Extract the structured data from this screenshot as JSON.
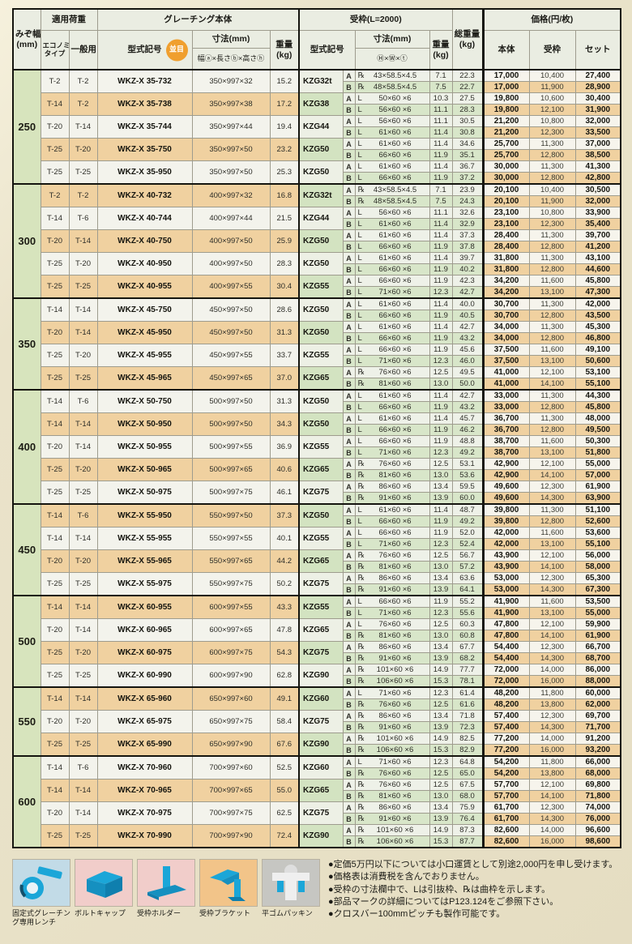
{
  "header": {
    "groove1": "みぞ幅",
    "groove2": "(mm)",
    "load": "適用荷重",
    "eco1": "エコノミー",
    "eco2": "タイプ",
    "general": "一般用",
    "grating": "グレーチング本体",
    "model": "型式記号",
    "pitch_badge": "並目",
    "dims": "寸法(mm)",
    "dims_detail": "幅ⓐ×長さⓑ×高さⓗ",
    "weight1": "重量",
    "weight2": "(kg)",
    "frame": "受枠(L=2000)",
    "frame_model": "型式記号",
    "frame_dims": "寸法(mm)",
    "frame_dims_detail": "Ⓗ×Ⓦ×ⓣ",
    "frame_weight1": "重量",
    "frame_weight2": "(kg)",
    "total1": "総重量",
    "total2": "(kg)",
    "price": "価格(円/枚)",
    "price_body": "本体",
    "price_frame": "受枠",
    "price_set": "セット"
  },
  "groups": [
    {
      "width": "250",
      "rows": [
        {
          "e": "T-2",
          "g": "T-2",
          "m": "WKZ-X 35-732",
          "d": "350×997×32",
          "w": "15.2",
          "f": "KZG32t",
          "a": [
            "℞",
            "43×58.5×4.5",
            "7.1",
            "22.3",
            "17,000",
            "10,400",
            "27,400"
          ],
          "b": [
            "℞",
            "48×58.5×4.5",
            "7.5",
            "22.7",
            "17,000",
            "11,900",
            "28,900"
          ]
        },
        {
          "e": "T-14",
          "g": "T-2",
          "m": "WKZ-X 35-738",
          "d": "350×997×38",
          "w": "17.2",
          "f": "KZG38",
          "a": [
            "L",
            "50×60 ×6",
            "10.3",
            "27.5",
            "19,800",
            "10,600",
            "30,400"
          ],
          "b": [
            "L",
            "56×60 ×6",
            "11.1",
            "28.3",
            "19,800",
            "12,100",
            "31,900"
          ]
        },
        {
          "e": "T-20",
          "g": "T-14",
          "m": "WKZ-X 35-744",
          "d": "350×997×44",
          "w": "19.4",
          "f": "KZG44",
          "a": [
            "L",
            "56×60 ×6",
            "11.1",
            "30.5",
            "21,200",
            "10,800",
            "32,000"
          ],
          "b": [
            "L",
            "61×60 ×6",
            "11.4",
            "30.8",
            "21,200",
            "12,300",
            "33,500"
          ]
        },
        {
          "e": "T-25",
          "g": "T-20",
          "m": "WKZ-X 35-750",
          "d": "350×997×50",
          "w": "23.2",
          "f": "KZG50",
          "a": [
            "L",
            "61×60 ×6",
            "11.4",
            "34.6",
            "25,700",
            "11,300",
            "37,000"
          ],
          "b": [
            "L",
            "66×60 ×6",
            "11.9",
            "35.1",
            "25,700",
            "12,800",
            "38,500"
          ]
        },
        {
          "e": "T-25",
          "g": "T-25",
          "m": "WKZ-X 35-950",
          "d": "350×997×50",
          "w": "25.3",
          "f": "KZG50",
          "a": [
            "L",
            "61×60 ×6",
            "11.4",
            "36.7",
            "30,000",
            "11,300",
            "41,300"
          ],
          "b": [
            "L",
            "66×60 ×6",
            "11.9",
            "37.2",
            "30,000",
            "12,800",
            "42,800"
          ]
        }
      ]
    },
    {
      "width": "300",
      "rows": [
        {
          "e": "T-2",
          "g": "T-2",
          "m": "WKZ-X 40-732",
          "d": "400×997×32",
          "w": "16.8",
          "f": "KZG32t",
          "a": [
            "℞",
            "43×58.5×4.5",
            "7.1",
            "23.9",
            "20,100",
            "10,400",
            "30,500"
          ],
          "b": [
            "℞",
            "48×58.5×4.5",
            "7.5",
            "24.3",
            "20,100",
            "11,900",
            "32,000"
          ]
        },
        {
          "e": "T-14",
          "g": "T-6",
          "m": "WKZ-X 40-744",
          "d": "400×997×44",
          "w": "21.5",
          "f": "KZG44",
          "a": [
            "L",
            "56×60 ×6",
            "11.1",
            "32.6",
            "23,100",
            "10,800",
            "33,900"
          ],
          "b": [
            "L",
            "61×60 ×6",
            "11.4",
            "32.9",
            "23,100",
            "12,300",
            "35,400"
          ]
        },
        {
          "e": "T-20",
          "g": "T-14",
          "m": "WKZ-X 40-750",
          "d": "400×997×50",
          "w": "25.9",
          "f": "KZG50",
          "a": [
            "L",
            "61×60 ×6",
            "11.4",
            "37.3",
            "28,400",
            "11,300",
            "39,700"
          ],
          "b": [
            "L",
            "66×60 ×6",
            "11.9",
            "37.8",
            "28,400",
            "12,800",
            "41,200"
          ]
        },
        {
          "e": "T-25",
          "g": "T-20",
          "m": "WKZ-X 40-950",
          "d": "400×997×50",
          "w": "28.3",
          "f": "KZG50",
          "a": [
            "L",
            "61×60 ×6",
            "11.4",
            "39.7",
            "31,800",
            "11,300",
            "43,100"
          ],
          "b": [
            "L",
            "66×60 ×6",
            "11.9",
            "40.2",
            "31,800",
            "12,800",
            "44,600"
          ]
        },
        {
          "e": "T-25",
          "g": "T-25",
          "m": "WKZ-X 40-955",
          "d": "400×997×55",
          "w": "30.4",
          "f": "KZG55",
          "a": [
            "L",
            "66×60 ×6",
            "11.9",
            "42.3",
            "34,200",
            "11,600",
            "45,800"
          ],
          "b": [
            "L",
            "71×60 ×6",
            "12.3",
            "42.7",
            "34,200",
            "13,100",
            "47,300"
          ]
        }
      ]
    },
    {
      "width": "350",
      "rows": [
        {
          "e": "T-14",
          "g": "T-14",
          "m": "WKZ-X 45-750",
          "d": "450×997×50",
          "w": "28.6",
          "f": "KZG50",
          "a": [
            "L",
            "61×60 ×6",
            "11.4",
            "40.0",
            "30,700",
            "11,300",
            "42,000"
          ],
          "b": [
            "L",
            "66×60 ×6",
            "11.9",
            "40.5",
            "30,700",
            "12,800",
            "43,500"
          ]
        },
        {
          "e": "T-20",
          "g": "T-14",
          "m": "WKZ-X 45-950",
          "d": "450×997×50",
          "w": "31.3",
          "f": "KZG50",
          "a": [
            "L",
            "61×60 ×6",
            "11.4",
            "42.7",
            "34,000",
            "11,300",
            "45,300"
          ],
          "b": [
            "L",
            "66×60 ×6",
            "11.9",
            "43.2",
            "34,000",
            "12,800",
            "46,800"
          ]
        },
        {
          "e": "T-25",
          "g": "T-20",
          "m": "WKZ-X 45-955",
          "d": "450×997×55",
          "w": "33.7",
          "f": "KZG55",
          "a": [
            "L",
            "66×60 ×6",
            "11.9",
            "45.6",
            "37,500",
            "11,600",
            "49,100"
          ],
          "b": [
            "L",
            "71×60 ×6",
            "12.3",
            "46.0",
            "37,500",
            "13,100",
            "50,600"
          ]
        },
        {
          "e": "T-25",
          "g": "T-25",
          "m": "WKZ-X 45-965",
          "d": "450×997×65",
          "w": "37.0",
          "f": "KZG65",
          "a": [
            "℞",
            "76×60 ×6",
            "12.5",
            "49.5",
            "41,000",
            "12,100",
            "53,100"
          ],
          "b": [
            "℞",
            "81×60 ×6",
            "13.0",
            "50.0",
            "41,000",
            "14,100",
            "55,100"
          ]
        }
      ]
    },
    {
      "width": "400",
      "rows": [
        {
          "e": "T-14",
          "g": "T-6",
          "m": "WKZ-X 50-750",
          "d": "500×997×50",
          "w": "31.3",
          "f": "KZG50",
          "a": [
            "L",
            "61×60 ×6",
            "11.4",
            "42.7",
            "33,000",
            "11,300",
            "44,300"
          ],
          "b": [
            "L",
            "66×60 ×6",
            "11.9",
            "43.2",
            "33,000",
            "12,800",
            "45,800"
          ]
        },
        {
          "e": "T-14",
          "g": "T-14",
          "m": "WKZ-X 50-950",
          "d": "500×997×50",
          "w": "34.3",
          "f": "KZG50",
          "a": [
            "L",
            "61×60 ×6",
            "11.4",
            "45.7",
            "36,700",
            "11,300",
            "48,000"
          ],
          "b": [
            "L",
            "66×60 ×6",
            "11.9",
            "46.2",
            "36,700",
            "12,800",
            "49,500"
          ]
        },
        {
          "e": "T-20",
          "g": "T-14",
          "m": "WKZ-X 50-955",
          "d": "500×997×55",
          "w": "36.9",
          "f": "KZG55",
          "a": [
            "L",
            "66×60 ×6",
            "11.9",
            "48.8",
            "38,700",
            "11,600",
            "50,300"
          ],
          "b": [
            "L",
            "71×60 ×6",
            "12.3",
            "49.2",
            "38,700",
            "13,100",
            "51,800"
          ]
        },
        {
          "e": "T-25",
          "g": "T-20",
          "m": "WKZ-X 50-965",
          "d": "500×997×65",
          "w": "40.6",
          "f": "KZG65",
          "a": [
            "℞",
            "76×60 ×6",
            "12.5",
            "53.1",
            "42,900",
            "12,100",
            "55,000"
          ],
          "b": [
            "℞",
            "81×60 ×6",
            "13.0",
            "53.6",
            "42,900",
            "14,100",
            "57,000"
          ]
        },
        {
          "e": "T-25",
          "g": "T-25",
          "m": "WKZ-X 50-975",
          "d": "500×997×75",
          "w": "46.1",
          "f": "KZG75",
          "a": [
            "℞",
            "86×60 ×6",
            "13.4",
            "59.5",
            "49,600",
            "12,300",
            "61,900"
          ],
          "b": [
            "℞",
            "91×60 ×6",
            "13.9",
            "60.0",
            "49,600",
            "14,300",
            "63,900"
          ]
        }
      ]
    },
    {
      "width": "450",
      "rows": [
        {
          "e": "T-14",
          "g": "T-6",
          "m": "WKZ-X 55-950",
          "d": "550×997×50",
          "w": "37.3",
          "f": "KZG50",
          "a": [
            "L",
            "61×60 ×6",
            "11.4",
            "48.7",
            "39,800",
            "11,300",
            "51,100"
          ],
          "b": [
            "L",
            "66×60 ×6",
            "11.9",
            "49.2",
            "39,800",
            "12,800",
            "52,600"
          ]
        },
        {
          "e": "T-14",
          "g": "T-14",
          "m": "WKZ-X 55-955",
          "d": "550×997×55",
          "w": "40.1",
          "f": "KZG55",
          "a": [
            "L",
            "66×60 ×6",
            "11.9",
            "52.0",
            "42,000",
            "11,600",
            "53,600"
          ],
          "b": [
            "L",
            "71×60 ×6",
            "12.3",
            "52.4",
            "42,000",
            "13,100",
            "55,100"
          ]
        },
        {
          "e": "T-20",
          "g": "T-20",
          "m": "WKZ-X 55-965",
          "d": "550×997×65",
          "w": "44.2",
          "f": "KZG65",
          "a": [
            "℞",
            "76×60 ×6",
            "12.5",
            "56.7",
            "43,900",
            "12,100",
            "56,000"
          ],
          "b": [
            "℞",
            "81×60 ×6",
            "13.0",
            "57.2",
            "43,900",
            "14,100",
            "58,000"
          ]
        },
        {
          "e": "T-25",
          "g": "T-25",
          "m": "WKZ-X 55-975",
          "d": "550×997×75",
          "w": "50.2",
          "f": "KZG75",
          "a": [
            "℞",
            "86×60 ×6",
            "13.4",
            "63.6",
            "53,000",
            "12,300",
            "65,300"
          ],
          "b": [
            "℞",
            "91×60 ×6",
            "13.9",
            "64.1",
            "53,000",
            "14,300",
            "67,300"
          ]
        }
      ]
    },
    {
      "width": "500",
      "rows": [
        {
          "e": "T-14",
          "g": "T-14",
          "m": "WKZ-X 60-955",
          "d": "600×997×55",
          "w": "43.3",
          "f": "KZG55",
          "a": [
            "L",
            "66×60 ×6",
            "11.9",
            "55.2",
            "41,900",
            "11,600",
            "53,500"
          ],
          "b": [
            "L",
            "71×60 ×6",
            "12.3",
            "55.6",
            "41,900",
            "13,100",
            "55,000"
          ]
        },
        {
          "e": "T-20",
          "g": "T-14",
          "m": "WKZ-X 60-965",
          "d": "600×997×65",
          "w": "47.8",
          "f": "KZG65",
          "a": [
            "L",
            "76×60 ×6",
            "12.5",
            "60.3",
            "47,800",
            "12,100",
            "59,900"
          ],
          "b": [
            "℞",
            "81×60 ×6",
            "13.0",
            "60.8",
            "47,800",
            "14,100",
            "61,900"
          ]
        },
        {
          "e": "T-25",
          "g": "T-20",
          "m": "WKZ-X 60-975",
          "d": "600×997×75",
          "w": "54.3",
          "f": "KZG75",
          "a": [
            "℞",
            "86×60 ×6",
            "13.4",
            "67.7",
            "54,400",
            "12,300",
            "66,700"
          ],
          "b": [
            "℞",
            "91×60 ×6",
            "13.9",
            "68.2",
            "54,400",
            "14,300",
            "68,700"
          ]
        },
        {
          "e": "T-25",
          "g": "T-25",
          "m": "WKZ-X 60-990",
          "d": "600×997×90",
          "w": "62.8",
          "f": "KZG90",
          "a": [
            "℞",
            "101×60 ×6",
            "14.9",
            "77.7",
            "72,000",
            "14,000",
            "86,000"
          ],
          "b": [
            "℞",
            "106×60 ×6",
            "15.3",
            "78.1",
            "72,000",
            "16,000",
            "88,000"
          ]
        }
      ]
    },
    {
      "width": "550",
      "rows": [
        {
          "e": "T-14",
          "g": "T-14",
          "m": "WKZ-X 65-960",
          "d": "650×997×60",
          "w": "49.1",
          "f": "KZG60",
          "a": [
            "L",
            "71×60 ×6",
            "12.3",
            "61.4",
            "48,200",
            "11,800",
            "60,000"
          ],
          "b": [
            "℞",
            "76×60 ×6",
            "12.5",
            "61.6",
            "48,200",
            "13,800",
            "62,000"
          ]
        },
        {
          "e": "T-20",
          "g": "T-20",
          "m": "WKZ-X 65-975",
          "d": "650×997×75",
          "w": "58.4",
          "f": "KZG75",
          "a": [
            "℞",
            "86×60 ×6",
            "13.4",
            "71.8",
            "57,400",
            "12,300",
            "69,700"
          ],
          "b": [
            "℞",
            "91×60 ×6",
            "13.9",
            "72.3",
            "57,400",
            "14,300",
            "71,700"
          ]
        },
        {
          "e": "T-25",
          "g": "T-25",
          "m": "WKZ-X 65-990",
          "d": "650×997×90",
          "w": "67.6",
          "f": "KZG90",
          "a": [
            "℞",
            "101×60 ×6",
            "14.9",
            "82.5",
            "77,200",
            "14,000",
            "91,200"
          ],
          "b": [
            "℞",
            "106×60 ×6",
            "15.3",
            "82.9",
            "77,200",
            "16,000",
            "93,200"
          ]
        }
      ]
    },
    {
      "width": "600",
      "rows": [
        {
          "e": "T-14",
          "g": "T-6",
          "m": "WKZ-X 70-960",
          "d": "700×997×60",
          "w": "52.5",
          "f": "KZG60",
          "a": [
            "L",
            "71×60 ×6",
            "12.3",
            "64.8",
            "54,200",
            "11,800",
            "66,000"
          ],
          "b": [
            "℞",
            "76×60 ×6",
            "12.5",
            "65.0",
            "54,200",
            "13,800",
            "68,000"
          ]
        },
        {
          "e": "T-14",
          "g": "T-14",
          "m": "WKZ-X 70-965",
          "d": "700×997×65",
          "w": "55.0",
          "f": "KZG65",
          "a": [
            "℞",
            "76×60 ×6",
            "12.5",
            "67.5",
            "57,700",
            "12,100",
            "69,800"
          ],
          "b": [
            "℞",
            "81×60 ×6",
            "13.0",
            "68.0",
            "57,700",
            "14,100",
            "71,800"
          ]
        },
        {
          "e": "T-20",
          "g": "T-14",
          "m": "WKZ-X 70-975",
          "d": "700×997×75",
          "w": "62.5",
          "f": "KZG75",
          "a": [
            "℞",
            "86×60 ×6",
            "13.4",
            "75.9",
            "61,700",
            "12,300",
            "74,000"
          ],
          "b": [
            "℞",
            "91×60 ×6",
            "13.9",
            "76.4",
            "61,700",
            "14,300",
            "76,000"
          ]
        },
        {
          "e": "T-25",
          "g": "T-25",
          "m": "WKZ-X 70-990",
          "d": "700×997×90",
          "w": "72.4",
          "f": "KZG90",
          "a": [
            "℞",
            "101×60 ×6",
            "14.9",
            "87.3",
            "82,600",
            "14,000",
            "96,600"
          ],
          "b": [
            "℞",
            "106×60 ×6",
            "15.3",
            "87.7",
            "82,600",
            "16,000",
            "98,600"
          ]
        }
      ]
    }
  ],
  "footer_parts": [
    {
      "icon": "fixed-grating-wrench-icon",
      "label": "固定式グレーチング専用レンチ"
    },
    {
      "icon": "bolt-cap-icon",
      "label": "ボルトキャップ"
    },
    {
      "icon": "frame-holder-icon",
      "label": "受枠ホルダー"
    },
    {
      "icon": "frame-bracket-icon",
      "label": "受枠ブラケット"
    },
    {
      "icon": "flat-rubber-packing-icon",
      "label": "平ゴムパッキン"
    }
  ],
  "notes": [
    "●定価5万円以下については小口運賃として別途2,000円を申し受けます。",
    "●価格表は消費税を含んでおりません。",
    "●受枠の寸法欄中で、Lは引抜枠、℞は曲枠を示します。",
    "●部品マークの詳細についてはP123.124をご参照下さい。",
    "●クロスバー100mmピッチも製作可能です。"
  ],
  "colors": {
    "accent_badge": "#f09f2e",
    "row_orange": "#f0d1a0",
    "row_white": "#f3f3ec",
    "green_cell": "#d7e4bd",
    "green_sub": "#d8e6c9",
    "icon_cyan": "#1ba6d8"
  }
}
